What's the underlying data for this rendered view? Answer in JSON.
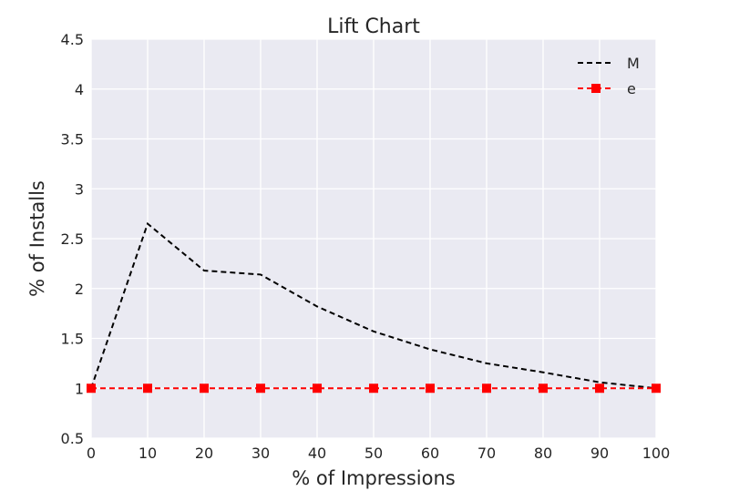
{
  "chart_data": {
    "type": "line",
    "title": "Lift Chart",
    "xlabel": "% of Impressions",
    "ylabel": "% of Installs",
    "xlim": [
      0,
      100
    ],
    "ylim": [
      0.5,
      4.5
    ],
    "x_ticks": [
      "0",
      "10",
      "20",
      "30",
      "40",
      "50",
      "60",
      "70",
      "80",
      "90",
      "100"
    ],
    "y_ticks": [
      "0.5",
      "1",
      "1.5",
      "2",
      "2.5",
      "3",
      "3.5",
      "4",
      "4.5"
    ],
    "grid": true,
    "legend_position": "top-right",
    "series": [
      {
        "name": "M",
        "color": "#000000",
        "style": "dashed",
        "marker": "none",
        "x": [
          0,
          10,
          20,
          30,
          40,
          50,
          60,
          70,
          80,
          90,
          100
        ],
        "y": [
          1.0,
          2.65,
          2.18,
          2.14,
          1.82,
          1.57,
          1.39,
          1.25,
          1.16,
          1.06,
          1.0
        ]
      },
      {
        "name": "e",
        "color": "#ff0000",
        "style": "dashed",
        "marker": "square",
        "x": [
          0,
          10,
          20,
          30,
          40,
          50,
          60,
          70,
          80,
          90,
          100
        ],
        "y": [
          1,
          1,
          1,
          1,
          1,
          1,
          1,
          1,
          1,
          1,
          1
        ]
      }
    ]
  }
}
